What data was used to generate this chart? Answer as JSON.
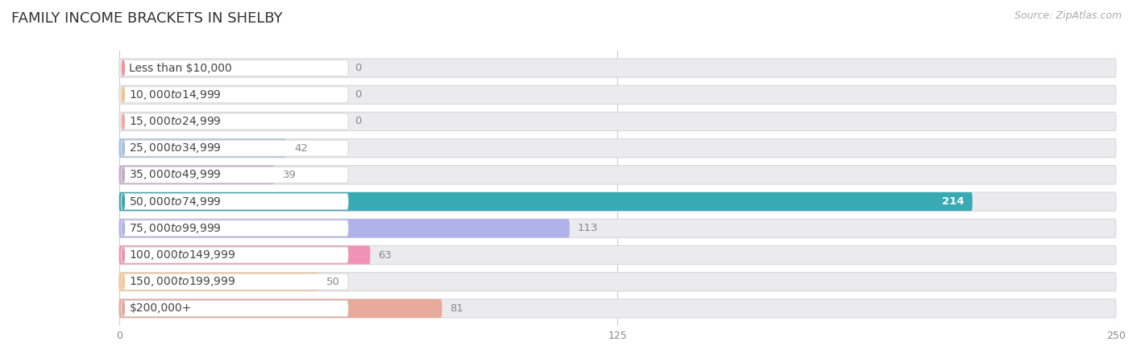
{
  "title": "FAMILY INCOME BRACKETS IN SHELBY",
  "source": "Source: ZipAtlas.com",
  "categories": [
    "Less than $10,000",
    "$10,000 to $14,999",
    "$15,000 to $24,999",
    "$25,000 to $34,999",
    "$35,000 to $49,999",
    "$50,000 to $74,999",
    "$75,000 to $99,999",
    "$100,000 to $149,999",
    "$150,000 to $199,999",
    "$200,000+"
  ],
  "values": [
    0,
    0,
    0,
    42,
    39,
    214,
    113,
    63,
    50,
    81
  ],
  "bar_colors": [
    "#F2929E",
    "#F5C48C",
    "#F4A8A2",
    "#A8C0E2",
    "#C8AACC",
    "#38AAB4",
    "#B0B2EA",
    "#F092B4",
    "#F8C892",
    "#E8A89A"
  ],
  "xlim": [
    0,
    250
  ],
  "xticks": [
    0,
    125,
    250
  ],
  "bg_color": "#ffffff",
  "row_bg_color": "#eeeeee",
  "row_bg_edge": "#e0e0e0",
  "title_fontsize": 13,
  "source_fontsize": 9,
  "label_fontsize": 10,
  "value_fontsize": 9.5
}
